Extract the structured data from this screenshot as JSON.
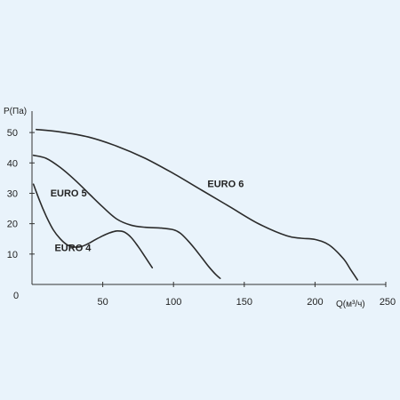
{
  "chart_data": {
    "type": "line",
    "title": "",
    "xlabel": "Q(м³/ч)",
    "ylabel": "P(Па)",
    "xlim": [
      0,
      250
    ],
    "ylim": [
      0,
      55
    ],
    "x_ticks": [
      50,
      100,
      150,
      200,
      250
    ],
    "y_ticks": [
      0,
      10,
      20,
      30,
      40,
      50
    ],
    "x_tick_labels": [
      "50",
      "100",
      "150",
      "200",
      "250"
    ],
    "y_tick_labels": [
      "0",
      "10",
      "20",
      "30",
      "40",
      "50"
    ],
    "grid": false,
    "legend": "none",
    "series": [
      {
        "name": "EURO 4",
        "x": [
          1,
          5,
          10,
          15,
          20,
          25,
          30,
          35,
          40,
          45,
          50,
          55,
          60,
          65,
          70,
          75,
          80,
          85
        ],
        "y": [
          33,
          28,
          22.5,
          18,
          15,
          13,
          12.3,
          12.5,
          13.5,
          14.8,
          16,
          17,
          17.6,
          17.3,
          15.5,
          12.5,
          9,
          5.5
        ]
      },
      {
        "name": "EURO 5",
        "x": [
          1,
          10,
          20,
          30,
          40,
          50,
          60,
          70,
          80,
          90,
          100,
          105,
          110,
          115,
          120,
          125,
          130,
          133
        ],
        "y": [
          42.5,
          41.5,
          38.5,
          34.5,
          30,
          25.5,
          21.5,
          19.5,
          18.8,
          18.6,
          18,
          16.8,
          14.5,
          11.8,
          8.8,
          5.8,
          3.2,
          2
        ]
      },
      {
        "name": "EURO 6",
        "x": [
          3,
          20,
          40,
          60,
          80,
          100,
          120,
          140,
          160,
          180,
          190,
          200,
          210,
          220,
          225,
          230
        ],
        "y": [
          51,
          50.2,
          48.5,
          45.5,
          41.5,
          36.5,
          31,
          25.5,
          20,
          16,
          15.2,
          14.8,
          13,
          8.5,
          5,
          1.5
        ]
      }
    ],
    "annotations": [
      {
        "text": "EURO 4",
        "x": 16,
        "y": 11
      },
      {
        "text": "EURO 5",
        "x": 13,
        "y": 29
      },
      {
        "text": "EURO 6",
        "x": 124,
        "y": 32
      }
    ]
  },
  "origin_label": "0"
}
